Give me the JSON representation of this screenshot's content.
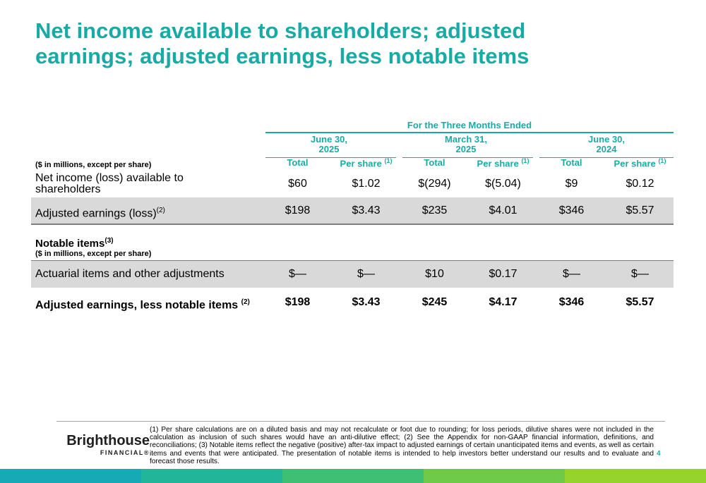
{
  "title": {
    "line1": "Net income available to shareholders; adjusted",
    "line2": "earnings; adjusted earnings, less notable items"
  },
  "table": {
    "period_header": "For the Three Months Ended",
    "periods": [
      {
        "line1": "June 30,",
        "line2": "2025"
      },
      {
        "line1": "March 31,",
        "line2": "2025"
      },
      {
        "line1": "June 30,",
        "line2": "2024"
      }
    ],
    "units_label": "($ in millions, except per share)",
    "subheaders": {
      "total": "Total",
      "per_share": "Per share",
      "per_share_note": "(1)"
    },
    "rows": [
      {
        "label_line1": "Net income (loss) available to",
        "label_line2": "shareholders",
        "values": [
          "$60",
          "$1.02",
          "$(294)",
          "$(5.04)",
          "$9",
          "$0.12"
        ]
      },
      {
        "label": "Adjusted earnings (loss)",
        "note": "(2)",
        "values": [
          "$198",
          "$3.43",
          "$235",
          "$4.01",
          "$346",
          "$5.57"
        ]
      }
    ],
    "notable": {
      "title": "Notable items",
      "note": "(3)",
      "units_label": "($ in millions, except per share)",
      "rows": [
        {
          "label": "Actuarial items and other adjustments",
          "values": [
            "$—",
            "$—",
            "$10",
            "$0.17",
            "$—",
            "$—"
          ]
        }
      ]
    },
    "total_row": {
      "label": "Adjusted earnings, less notable items",
      "note": "(2)",
      "values": [
        "$198",
        "$3.43",
        "$245",
        "$4.17",
        "$346",
        "$5.57"
      ]
    }
  },
  "footer": {
    "logo_main": "Brighthouse",
    "logo_sub": "FINANCIAL",
    "logo_mark": "®",
    "footnote": "(1) Per share calculations are on a diluted basis and may not recalculate or foot due to rounding; for loss periods, dilutive shares were not included in the calculation as inclusion of such shares would have an anti-dilutive effect; (2) See the Appendix for non-GAAP financial information, definitions, and reconciliations; (3) Notable items reflect the negative (positive) after-tax impact to adjusted earnings of certain unanticipated items and events, as well as certain items and events that were anticipated. The presentation of notable items is intended to help investors better understand our results and to evaluate and forecast those results.",
    "page_number": "4"
  },
  "colors": {
    "accent": "#1aaaa5",
    "row_shade": "#d9d9d9",
    "bar": [
      "#17a9b5",
      "#22b59a",
      "#3fbf73",
      "#6fca4a",
      "#96d42d"
    ]
  }
}
